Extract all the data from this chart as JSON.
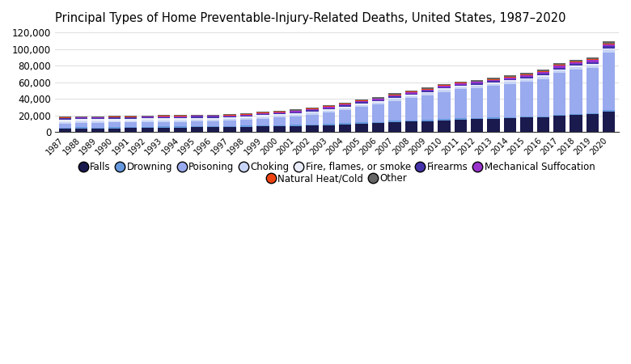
{
  "title": "Principal Types of Home Preventable-Injury-Related Deaths, United States, 1987–2020",
  "years": [
    1987,
    1988,
    1989,
    1990,
    1991,
    1992,
    1993,
    1994,
    1995,
    1996,
    1997,
    1998,
    1999,
    2000,
    2001,
    2002,
    2003,
    2004,
    2005,
    2006,
    2007,
    2008,
    2009,
    2010,
    2011,
    2012,
    2013,
    2014,
    2015,
    2016,
    2017,
    2018,
    2019,
    2020
  ],
  "series": {
    "Falls": [
      4200,
      4600,
      4500,
      4800,
      5000,
      5200,
      5500,
      5700,
      5900,
      6000,
      6200,
      6500,
      7000,
      7200,
      7500,
      8000,
      8500,
      9500,
      10500,
      11000,
      12500,
      13000,
      13500,
      14500,
      15500,
      16000,
      16500,
      17000,
      17500,
      18000,
      20000,
      21000,
      21500,
      25000
    ],
    "Drowning": [
      1200,
      1200,
      1100,
      1100,
      1200,
      1300,
      1300,
      1400,
      1400,
      1400,
      1400,
      1400,
      1400,
      1400,
      1400,
      1400,
      1400,
      1400,
      1400,
      1300,
      1200,
      1200,
      1200,
      1200,
      1200,
      1200,
      1200,
      1200,
      1200,
      1200,
      1300,
      1300,
      1300,
      1500
    ],
    "Poisoning": [
      5000,
      5200,
      5500,
      5800,
      5500,
      5500,
      5500,
      5500,
      5500,
      5500,
      6000,
      7000,
      8000,
      9000,
      10000,
      12000,
      14000,
      16000,
      19000,
      21000,
      24000,
      27000,
      30000,
      33000,
      35000,
      36000,
      38000,
      40000,
      42000,
      45000,
      50000,
      53000,
      55000,
      70000
    ],
    "Choking": [
      1800,
      1800,
      1700,
      1800,
      1800,
      1900,
      1900,
      1900,
      2000,
      2000,
      2000,
      2000,
      2000,
      2000,
      2000,
      2000,
      2100,
      2100,
      2200,
      2200,
      2300,
      2300,
      2400,
      2500,
      2600,
      2600,
      2700,
      2700,
      2800,
      2900,
      3000,
      3100,
      3100,
      3200
    ],
    "Fire, flames, or smoke": [
      3200,
      3000,
      3000,
      2900,
      2800,
      2700,
      2600,
      2500,
      2500,
      2400,
      2300,
      2200,
      2100,
      2000,
      2000,
      1900,
      1900,
      1900,
      1800,
      1800,
      1800,
      1700,
      1600,
      1600,
      1600,
      1600,
      1600,
      1500,
      1500,
      1500,
      1600,
      1600,
      1600,
      1700
    ],
    "Firearms": [
      1200,
      1300,
      1300,
      1300,
      1300,
      1400,
      1400,
      1300,
      1300,
      1300,
      1200,
      1200,
      1200,
      1300,
      1300,
      1300,
      1300,
      1300,
      1300,
      1400,
      1400,
      1400,
      1400,
      1400,
      1500,
      1500,
      1500,
      1600,
      1700,
      1800,
      2000,
      2000,
      2000,
      2200
    ],
    "Mechanical Suffocation": [
      600,
      600,
      600,
      600,
      700,
      700,
      800,
      800,
      900,
      900,
      1000,
      1000,
      1100,
      1100,
      1200,
      1200,
      1300,
      1300,
      1400,
      1400,
      1400,
      1500,
      1500,
      1600,
      1700,
      1700,
      1800,
      1900,
      2000,
      2100,
      2300,
      2400,
      2500,
      2600
    ],
    "Natural Heat/Cold": [
      500,
      500,
      500,
      500,
      500,
      600,
      600,
      600,
      600,
      600,
      600,
      600,
      700,
      700,
      700,
      700,
      700,
      700,
      800,
      800,
      800,
      800,
      800,
      800,
      800,
      800,
      800,
      800,
      800,
      900,
      900,
      900,
      900,
      1000
    ],
    "Other": [
      800,
      800,
      800,
      900,
      900,
      1000,
      1100,
      1100,
      1200,
      1200,
      1300,
      1300,
      1400,
      1400,
      1400,
      1500,
      1500,
      1500,
      1500,
      1500,
      1500,
      1500,
      1500,
      1500,
      1500,
      1500,
      1600,
      1600,
      1700,
      1800,
      2000,
      2000,
      2000,
      2200
    ]
  },
  "colors": {
    "Falls": "#1a1a4e",
    "Drowning": "#6699dd",
    "Poisoning": "#99aaee",
    "Choking": "#c8d4f5",
    "Fire, flames, or smoke": "#e8ecf8",
    "Firearms": "#4433aa",
    "Mechanical Suffocation": "#9933cc",
    "Natural Heat/Cold": "#ee4411",
    "Other": "#666666"
  },
  "ylim": [
    0,
    125000
  ],
  "yticks": [
    0,
    20000,
    40000,
    60000,
    80000,
    100000,
    120000
  ],
  "background_color": "#ffffff",
  "title_fontsize": 10.5,
  "legend_fontsize": 8.5,
  "bar_width": 0.75,
  "legend_row1": [
    "Falls",
    "Drowning",
    "Poisoning",
    "Choking",
    "Fire, flames, or smoke",
    "Firearms",
    "Mechanical Suffocation"
  ],
  "legend_row2": [
    "Natural Heat/Cold",
    "Other"
  ]
}
